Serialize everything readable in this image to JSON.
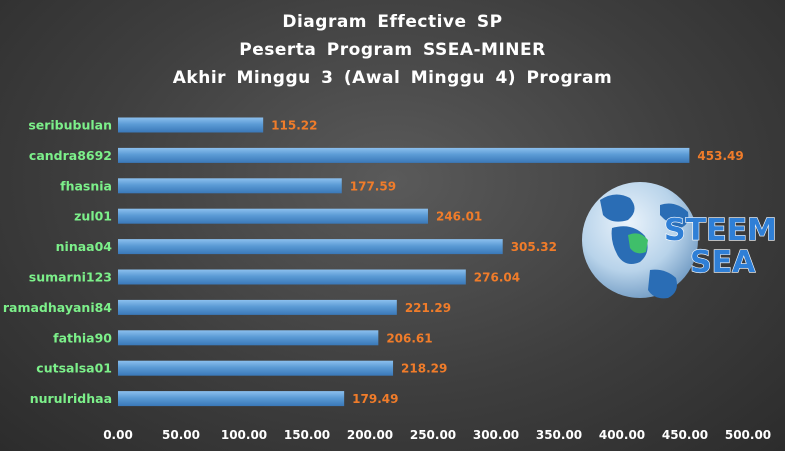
{
  "chart_data": {
    "type": "bar",
    "orientation": "horizontal",
    "title_lines": [
      "Diagram  Effective  SP",
      "Peserta  Program  SSEA-MINER",
      "Akhir  Minggu  3  (Awal  Minggu  4)  Program"
    ],
    "categories": [
      "seribubulan",
      "candra8692",
      "fhasnia",
      "zul01",
      "ninaa04",
      "sumarni123",
      "ramadhayani84",
      "fathia90",
      "cutsalsa01",
      "nurulridhaa"
    ],
    "values": [
      115.22,
      453.49,
      177.59,
      246.01,
      305.32,
      276.04,
      221.29,
      206.61,
      218.29,
      179.49
    ],
    "value_labels": [
      "115.22",
      "453.49",
      "177.59",
      "246.01",
      "305.32",
      "276.04",
      "221.29",
      "206.61",
      "218.29",
      "179.49"
    ],
    "xlim": [
      0,
      500
    ],
    "x_ticks": [
      "0.00",
      "50.00",
      "100.00",
      "150.00",
      "200.00",
      "250.00",
      "300.00",
      "350.00",
      "400.00",
      "450.00",
      "500.00"
    ],
    "grid": false,
    "legend": "none",
    "colors": {
      "bar": "#5b9bd5",
      "category_label": "#7cf08a",
      "value_label": "#f07c2a",
      "title": "#ffffff"
    }
  },
  "logo": {
    "icon": "globe-icon",
    "line1": "STEEM",
    "line2": "SEA"
  }
}
